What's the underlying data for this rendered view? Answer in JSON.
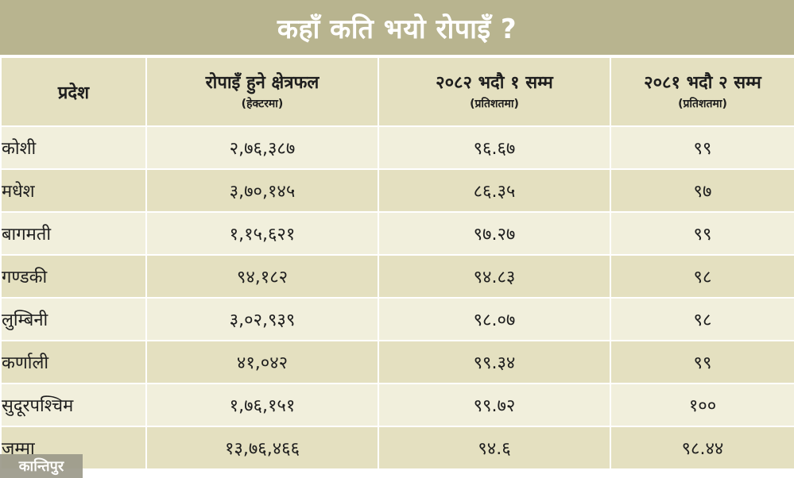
{
  "title": "कहाँ कति भयो रोपाइँ ?",
  "colors": {
    "title_bg": "#b8b48f",
    "header_bg": "#e4e0c0",
    "row_odd_bg": "#e4e0c0",
    "row_even_bg": "#f1efdc",
    "text": "#1e1e1e"
  },
  "table": {
    "headers": [
      {
        "main": "प्रदेश",
        "sub": ""
      },
      {
        "main": "रोपाइँ हुने क्षेत्रफल",
        "sub": "(हेक्टरमा)"
      },
      {
        "main": "२०८२ भदौ १ सम्म",
        "sub": "(प्रतिशतमा)"
      },
      {
        "main": "२०८१ भदौ २ सम्म",
        "sub": "(प्रतिशतमा)"
      }
    ],
    "rows": [
      {
        "province": "कोशी",
        "area": "२,७६,३८७",
        "pct_2082": "९६.६७",
        "pct_2081": "९९"
      },
      {
        "province": "मधेश",
        "area": "३,७०,१४५",
        "pct_2082": "८६.३५",
        "pct_2081": "९७"
      },
      {
        "province": "बागमती",
        "area": "१,१५,६२१",
        "pct_2082": "९७.२७",
        "pct_2081": "९९"
      },
      {
        "province": "गण्डकी",
        "area": "९४,१८२",
        "pct_2082": "९४.८३",
        "pct_2081": "९८"
      },
      {
        "province": "लुम्बिनी",
        "area": "३,०२,९३९",
        "pct_2082": "९८.०७",
        "pct_2081": "९८"
      },
      {
        "province": "कर्णाली",
        "area": "४१,०४२",
        "pct_2082": "९९.३४",
        "pct_2081": "९९"
      },
      {
        "province": "सुदूरपश्चिम",
        "area": "१,७६,१५१",
        "pct_2082": "९९.७२",
        "pct_2081": "१००"
      }
    ],
    "total": {
      "province": "जम्मा",
      "area": "१३,७६,४६६",
      "pct_2082": "९४.६",
      "pct_2081": "९८.४४"
    }
  },
  "logo": "कान्तिपुर"
}
